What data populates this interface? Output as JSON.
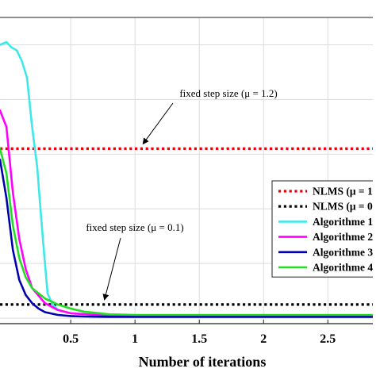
{
  "chart_data": {
    "type": "line",
    "title": "",
    "xlabel": "Number of iterations",
    "ylabel": "",
    "xlim": [
      -0.05,
      2.85
    ],
    "ylim": [
      -0.02,
      1.1
    ],
    "xticks": [
      {
        "value": 0.5,
        "label": "0.5"
      },
      {
        "value": 1,
        "label": "1"
      },
      {
        "value": 1.5,
        "label": "1.5"
      },
      {
        "value": 2,
        "label": "2"
      },
      {
        "value": 2.5,
        "label": "2.5"
      }
    ],
    "grid": true,
    "legend_position": "right",
    "annotations": [
      {
        "text": "fixed step size (μ = 1.2)",
        "target": [
          1.05,
          0.62
        ]
      },
      {
        "text": "fixed step size (μ = 0.1)",
        "target": [
          0.75,
          0.05
        ]
      }
    ],
    "series": [
      {
        "name": "NLMS (μ = 1",
        "color": "#e8000b",
        "style": "dotted",
        "x": [
          -0.05,
          2.85
        ],
        "y": [
          0.62,
          0.62
        ]
      },
      {
        "name": "NLMS (μ = 0",
        "color": "#000000",
        "style": "dotted",
        "x": [
          -0.05,
          2.85
        ],
        "y": [
          0.05,
          0.05
        ]
      },
      {
        "name": "Algorithme 1",
        "color": "#3ee8e8",
        "style": "solid",
        "x": [
          -0.05,
          0.0,
          0.04,
          0.08,
          0.12,
          0.16,
          0.2,
          0.24,
          0.26,
          0.28,
          0.3,
          0.32,
          0.36,
          0.4,
          0.5,
          0.7,
          1.0,
          2.85
        ],
        "y": [
          1.0,
          1.01,
          0.99,
          0.98,
          0.94,
          0.88,
          0.7,
          0.55,
          0.43,
          0.31,
          0.2,
          0.09,
          0.05,
          0.03,
          0.018,
          0.012,
          0.01,
          0.01
        ]
      },
      {
        "name": "Algorithme 2",
        "color": "#ff00ff",
        "style": "solid",
        "x": [
          -0.05,
          0.0,
          0.05,
          0.1,
          0.15,
          0.2,
          0.3,
          0.4,
          0.5,
          0.7,
          1.0,
          2.85
        ],
        "y": [
          0.76,
          0.7,
          0.46,
          0.29,
          0.18,
          0.11,
          0.055,
          0.03,
          0.018,
          0.012,
          0.01,
          0.01
        ]
      },
      {
        "name": "Algorithme 3",
        "color": "#0000b0",
        "style": "solid",
        "x": [
          -0.05,
          0.0,
          0.05,
          0.1,
          0.15,
          0.2,
          0.25,
          0.3,
          0.4,
          0.5,
          0.6,
          0.8,
          1.0,
          2.85
        ],
        "y": [
          0.58,
          0.44,
          0.25,
          0.14,
          0.085,
          0.055,
          0.035,
          0.022,
          0.012,
          0.008,
          0.006,
          0.005,
          0.005,
          0.005
        ]
      },
      {
        "name": "Algorithme 4",
        "color": "#22dd22",
        "style": "solid",
        "x": [
          -0.05,
          0.0,
          0.05,
          0.1,
          0.15,
          0.2,
          0.3,
          0.4,
          0.5,
          0.6,
          0.8,
          1.0,
          2.85
        ],
        "y": [
          0.62,
          0.53,
          0.34,
          0.22,
          0.15,
          0.11,
          0.072,
          0.05,
          0.035,
          0.024,
          0.014,
          0.012,
          0.012
        ]
      }
    ]
  }
}
